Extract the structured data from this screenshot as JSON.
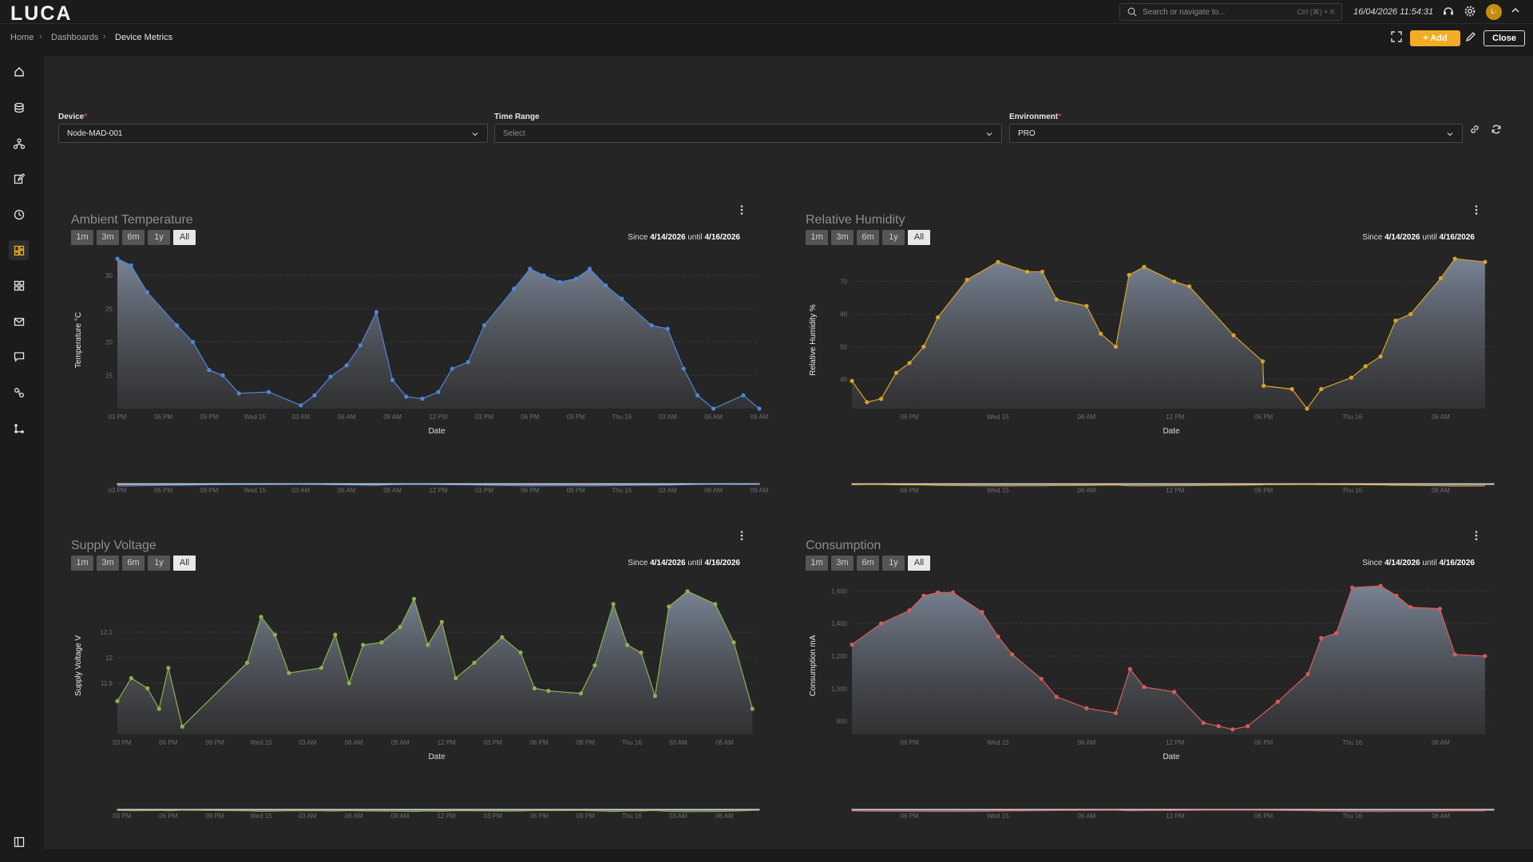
{
  "app": {
    "logo": "LUCA"
  },
  "header": {
    "search_placeholder": "Search or navigate to...",
    "search_shortcut": "Ctrl (⌘) + K",
    "datetime": "16/04/2026 11:54:31",
    "avatar_initials": "L-"
  },
  "breadcrumb": [
    "Home",
    "Dashboards",
    "Device Metrics"
  ],
  "toolbar": {
    "add_label": "Add",
    "close_label": "Close"
  },
  "sidebar": {
    "items": [
      "home-icon",
      "database-icon",
      "network-icon",
      "edit-icon",
      "clock-icon",
      "dashboard-icon",
      "grid-icon",
      "mail-icon",
      "chat-icon",
      "link-icon",
      "flow-icon"
    ],
    "active_index": 5,
    "footer_icon": "panel-toggle-icon"
  },
  "filters": {
    "device": {
      "label": "Device",
      "value": "Node-MAD-001"
    },
    "time_range": {
      "label": "Time Range",
      "placeholder": "Select"
    },
    "environment": {
      "label": "Environment",
      "value": "PRO"
    }
  },
  "range_buttons": [
    "1m",
    "3m",
    "6m",
    "1y",
    "All"
  ],
  "panels": [
    {
      "title": "Ambient Temperature",
      "since_prefix": "Since",
      "since": "4/14/2026",
      "until_prefix": "until",
      "until": "4/16/2026"
    },
    {
      "title": "Relative Humidity",
      "since_prefix": "Since",
      "since": "4/14/2026",
      "until_prefix": "until",
      "until": "4/16/2026"
    },
    {
      "title": "Supply Voltage",
      "since_prefix": "Since",
      "since": "4/14/2026",
      "until_prefix": "until",
      "until": "4/16/2026"
    },
    {
      "title": "Consumption",
      "since_prefix": "Since",
      "since": "4/14/2026",
      "until_prefix": "until",
      "until": "4/16/2026"
    }
  ],
  "chart_data": [
    {
      "type": "area",
      "title": "Ambient Temperature",
      "xlabel": "Date",
      "ylabel": "Temperature °C",
      "color": "#4f86d6",
      "ylim": [
        10,
        33
      ],
      "yticks": [
        15,
        20,
        25,
        30
      ],
      "xticks": [
        "03 PM",
        "06 PM",
        "09 PM",
        "Wed 15",
        "03 AM",
        "06 AM",
        "09 AM",
        "12 PM",
        "03 PM",
        "06 PM",
        "09 PM",
        "Thu 16",
        "03 AM",
        "06 AM",
        "09 AM"
      ],
      "nav_xticks": [
        "03 PM",
        "06 PM",
        "09 PM",
        "Wed 15",
        "03 AM",
        "06 AM",
        "09 AM",
        "12 PM",
        "03 PM",
        "06 PM",
        "09 PM",
        "Thu 16",
        "03 AM",
        "06 AM",
        "09 AM"
      ],
      "x_end": 14,
      "x": [
        0,
        0.3,
        0.65,
        1.3,
        1.65,
        2.0,
        2.3,
        2.65,
        3.3,
        4.0,
        4.3,
        4.65,
        5.0,
        5.3,
        5.65,
        6.0,
        6.3,
        6.65,
        7.0,
        7.3,
        7.65,
        8.0,
        8.65,
        9.0,
        9.3,
        9.65,
        10.0,
        10.3,
        10.65,
        11.0,
        11.65,
        12.0,
        12.35,
        12.65,
        13.0,
        13.65,
        14.0
      ],
      "y": [
        32.5,
        31.5,
        27.5,
        22.5,
        20.0,
        15.8,
        15.0,
        12.3,
        12.5,
        10.5,
        12.0,
        14.8,
        16.5,
        19.5,
        24.5,
        14.3,
        11.8,
        11.5,
        12.5,
        16.0,
        17.0,
        22.5,
        28.0,
        31.0,
        30.0,
        29.0,
        29.5,
        31.0,
        28.5,
        26.5,
        22.5,
        22.0,
        16.0,
        12.0,
        10.0,
        12.0,
        10.0
      ]
    },
    {
      "type": "area",
      "title": "Relative Humidity",
      "xlabel": "Date",
      "ylabel": "Relative Humidity %",
      "color": "#d9a324",
      "ylim": [
        31,
        78
      ],
      "yticks": [
        40,
        50,
        60,
        70
      ],
      "xticks": [
        "06 PM",
        "Wed 15",
        "06 AM",
        "12 PM",
        "06 PM",
        "Thu 16",
        "06 AM"
      ],
      "nav_xticks": [
        "06 PM",
        "Wed 15",
        "06 AM",
        "12 PM",
        "06 PM",
        "Thu 16",
        "06 AM"
      ],
      "x_end": 6.6,
      "x": [
        -0.65,
        -0.48,
        -0.32,
        -0.15,
        0.0,
        0.16,
        0.32,
        0.65,
        1.0,
        1.33,
        1.5,
        1.66,
        2.0,
        2.16,
        2.33,
        2.48,
        2.65,
        2.99,
        3.16,
        3.66,
        3.99,
        4.0,
        4.32,
        4.49,
        4.65,
        4.99,
        5.15,
        5.32,
        5.49,
        5.66,
        6.0,
        6.16,
        6.5
      ],
      "y": [
        39.5,
        33.0,
        34.0,
        42.0,
        45.0,
        50.0,
        59.0,
        70.5,
        76.0,
        73.0,
        73.0,
        64.5,
        62.5,
        54.0,
        50.0,
        72.0,
        74.5,
        70.0,
        68.5,
        53.5,
        45.5,
        38.0,
        37.0,
        31.0,
        37.0,
        40.5,
        44.0,
        47.0,
        58.0,
        60.0,
        71.0,
        77.0,
        76.0
      ]
    },
    {
      "type": "area",
      "title": "Supply Voltage",
      "xlabel": "Date",
      "ylabel": "Supply Voltage V",
      "color": "#8ab34e",
      "ylim": [
        11.7,
        12.3
      ],
      "yticks": [
        11.9,
        12.0,
        12.1
      ],
      "xticks": [
        "03 PM",
        "06 PM",
        "09 PM",
        "Wed 15",
        "03 AM",
        "06 AM",
        "09 AM",
        "12 PM",
        "03 PM",
        "06 PM",
        "09 PM",
        "Thu 16",
        "03 AM",
        "06 AM"
      ],
      "nav_xticks": [
        "03 PM",
        "06 PM",
        "09 PM",
        "Wed 15",
        "03 AM",
        "06 AM",
        "09 AM",
        "12 PM",
        "03 PM",
        "06 PM",
        "09 PM",
        "Thu 16",
        "03 AM",
        "06 AM"
      ],
      "x_end": 13.75,
      "x": [
        -0.1,
        0.2,
        0.55,
        0.8,
        1.0,
        1.3,
        2.7,
        3.0,
        3.3,
        3.6,
        4.3,
        4.6,
        4.9,
        5.2,
        5.6,
        6.0,
        6.3,
        6.6,
        6.9,
        7.2,
        7.6,
        8.2,
        8.6,
        8.9,
        9.2,
        9.9,
        10.2,
        10.6,
        10.9,
        11.2,
        11.5,
        11.8,
        12.2,
        12.8,
        13.2,
        13.6
      ],
      "y": [
        11.83,
        11.92,
        11.88,
        11.8,
        11.96,
        11.73,
        11.98,
        12.16,
        12.09,
        11.94,
        11.96,
        12.09,
        11.9,
        12.05,
        12.06,
        12.12,
        12.23,
        12.05,
        12.14,
        11.92,
        11.98,
        12.08,
        12.02,
        11.88,
        11.87,
        11.86,
        11.97,
        12.21,
        12.05,
        12.02,
        11.85,
        12.2,
        12.26,
        12.21,
        12.06,
        11.8
      ]
    },
    {
      "type": "area",
      "title": "Consumption",
      "xlabel": "Date",
      "ylabel": "Consumption mA",
      "color": "#d95b5b",
      "ylim": [
        720,
        1660
      ],
      "yticks": [
        800,
        1000,
        1200,
        1400,
        1600
      ],
      "xticks": [
        "06 PM",
        "Wed 15",
        "06 AM",
        "12 PM",
        "06 PM",
        "Thu 16",
        "06 AM"
      ],
      "nav_xticks": [
        "06 PM",
        "Wed 15",
        "06 AM",
        "12 PM",
        "06 PM",
        "Thu 16",
        "06 AM"
      ],
      "x_end": 6.6,
      "x": [
        -0.65,
        -0.32,
        0.0,
        0.16,
        0.32,
        0.49,
        0.82,
        1.0,
        1.16,
        1.49,
        1.66,
        2.0,
        2.33,
        2.49,
        2.65,
        2.99,
        3.32,
        3.49,
        3.65,
        3.82,
        4.16,
        4.5,
        4.65,
        4.82,
        5.0,
        5.32,
        5.5,
        5.66,
        5.99,
        6.16,
        6.5
      ],
      "y": [
        1270,
        1400,
        1480,
        1570,
        1590,
        1590,
        1470,
        1320,
        1210,
        1060,
        950,
        880,
        850,
        1120,
        1010,
        980,
        790,
        770,
        750,
        770,
        920,
        1090,
        1310,
        1340,
        1620,
        1630,
        1570,
        1500,
        1490,
        1210,
        1200
      ]
    }
  ]
}
